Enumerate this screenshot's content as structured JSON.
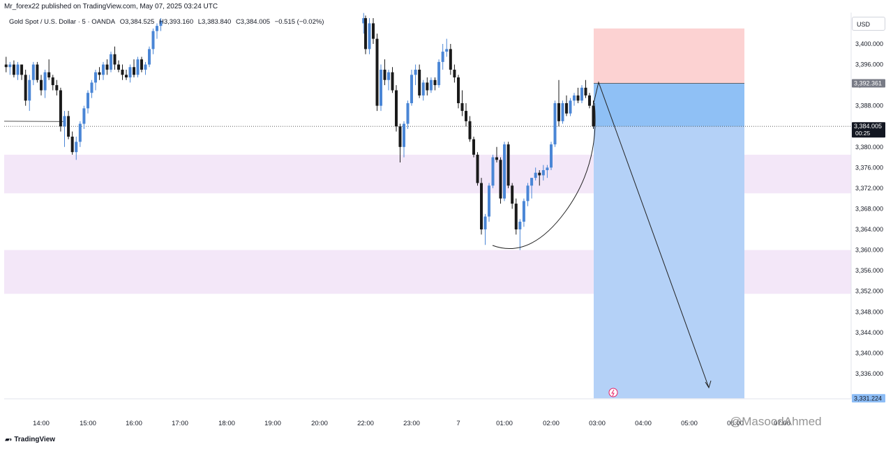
{
  "header": {
    "publish_text": "Mr_forex22 published on TradingView.com, May 07, 2025 03:24 UTC"
  },
  "symbol": {
    "name": "Gold Spot / U.S. Dollar · 5 · OANDA",
    "open": "O3,384.525",
    "high": "H3,393.160",
    "low": "L3,383.840",
    "close": "C3,384.005",
    "change": "−0.515 (−0.02%)"
  },
  "currency": "USD",
  "branding": {
    "logo_text": "TradingView",
    "watermark": "@MasoodAhmed"
  },
  "colors": {
    "bull": "#4a86d6",
    "bear": "#1a1a1a",
    "zone": "#f3e7f8",
    "stop_zone": "#fcd2d2",
    "target_zone": "#b4d1f7",
    "entry_zone": "#8fc0f5"
  },
  "chart_data": {
    "type": "candlestick",
    "ylim": [
      3330,
      3404
    ],
    "y_ticks": [
      "3,400.000",
      "3,396.000",
      "3,392.000",
      "3,388.000",
      "3,384.000",
      "3,380.000",
      "3,376.000",
      "3,372.000",
      "3,368.000",
      "3,364.000",
      "3,360.000",
      "3,356.000",
      "3,352.000",
      "3,348.000",
      "3,344.000",
      "3,340.000",
      "3,336.000"
    ],
    "x_ticks": [
      "14:00",
      "15:00",
      "16:00",
      "17:00",
      "18:00",
      "19:00",
      "20:00",
      "22:00",
      "23:00",
      "7",
      "01:00",
      "02:00",
      "03:00",
      "04:00",
      "05:00",
      "06:00",
      "07:00"
    ],
    "last_price": {
      "value": "3,384.005",
      "countdown": "00:25"
    },
    "position": {
      "side": "short",
      "entry": "3,392.361",
      "target": "3,331.224",
      "stop_top": 3403.0
    },
    "demand_zones": [
      {
        "from": 3371,
        "to": 3378.5
      },
      {
        "from": 3351.5,
        "to": 3360
      }
    ],
    "reference_level": 3385,
    "session_1_start": "13:15",
    "session_2_start": "21:55",
    "candles_session_1": [
      [
        3396.0,
        3397.5,
        3394.5,
        3395.5
      ],
      [
        3395.5,
        3396.5,
        3394.0,
        3396.0
      ],
      [
        3396.0,
        3396.8,
        3393.5,
        3394.0
      ],
      [
        3394.0,
        3396.5,
        3393.0,
        3396.0
      ],
      [
        3396.0,
        3396.0,
        3393.0,
        3394.0
      ],
      [
        3394.0,
        3395.0,
        3388.0,
        3389.0
      ],
      [
        3389.0,
        3394.0,
        3387.0,
        3393.0
      ],
      [
        3393.0,
        3396.5,
        3392.0,
        3396.0
      ],
      [
        3396.0,
        3396.5,
        3392.5,
        3393.0
      ],
      [
        3393.0,
        3394.0,
        3390.0,
        3391.0
      ],
      [
        3391.0,
        3395.0,
        3389.5,
        3394.5
      ],
      [
        3394.5,
        3397.0,
        3393.0,
        3393.5
      ],
      [
        3393.5,
        3394.0,
        3391.0,
        3392.0
      ],
      [
        3392.0,
        3393.0,
        3390.0,
        3391.0
      ],
      [
        3391.0,
        3391.5,
        3383.0,
        3384.0
      ],
      [
        3384.0,
        3387.0,
        3380.0,
        3386.0
      ],
      [
        3386.0,
        3387.0,
        3381.5,
        3382.0
      ],
      [
        3382.0,
        3383.0,
        3378.5,
        3379.0
      ],
      [
        3379.0,
        3382.0,
        3377.5,
        3381.0
      ],
      [
        3381.0,
        3385.0,
        3380.0,
        3384.5
      ],
      [
        3384.5,
        3388.0,
        3383.5,
        3387.5
      ],
      [
        3387.5,
        3391.0,
        3386.5,
        3390.5
      ],
      [
        3390.5,
        3393.0,
        3389.5,
        3392.5
      ],
      [
        3392.5,
        3395.0,
        3391.0,
        3394.5
      ],
      [
        3394.5,
        3395.5,
        3393.0,
        3394.0
      ],
      [
        3394.0,
        3396.5,
        3393.0,
        3396.0
      ],
      [
        3396.0,
        3397.0,
        3394.0,
        3395.0
      ],
      [
        3395.0,
        3398.5,
        3394.5,
        3398.0
      ],
      [
        3398.0,
        3399.5,
        3395.0,
        3396.0
      ],
      [
        3396.0,
        3396.8,
        3394.5,
        3395.0
      ],
      [
        3395.0,
        3396.0,
        3393.0,
        3394.0
      ],
      [
        3394.0,
        3395.0,
        3393.0,
        3393.5
      ],
      [
        3393.5,
        3396.0,
        3392.5,
        3395.5
      ],
      [
        3395.5,
        3397.0,
        3393.5,
        3394.0
      ],
      [
        3394.0,
        3397.5,
        3393.5,
        3397.0
      ],
      [
        3397.0,
        3397.5,
        3394.5,
        3395.0
      ],
      [
        3395.0,
        3396.5,
        3394.0,
        3396.0
      ],
      [
        3396.0,
        3399.5,
        3395.5,
        3399.0
      ],
      [
        3399.0,
        3403.0,
        3398.0,
        3402.5
      ],
      [
        3402.5,
        3404.0,
        3401.0,
        3403.5
      ],
      [
        3403.5,
        3405.0,
        3402.5,
        3404.5
      ]
    ],
    "candles_session_2": [
      [
        3404.0,
        3406.0,
        3402.0,
        3405.0
      ],
      [
        3405.0,
        3405.5,
        3398.0,
        3399.0
      ],
      [
        3399.0,
        3405.0,
        3398.0,
        3404.0
      ],
      [
        3404.0,
        3405.0,
        3400.0,
        3401.0
      ],
      [
        3401.0,
        3402.0,
        3387.0,
        3388.0
      ],
      [
        3388.0,
        3396.0,
        3387.0,
        3395.0
      ],
      [
        3395.0,
        3397.0,
        3392.0,
        3393.0
      ],
      [
        3393.0,
        3395.0,
        3391.0,
        3394.5
      ],
      [
        3394.5,
        3395.5,
        3390.5,
        3391.0
      ],
      [
        3391.0,
        3392.0,
        3383.0,
        3384.0
      ],
      [
        3384.0,
        3384.5,
        3377.0,
        3380.0
      ],
      [
        3380.0,
        3385.0,
        3378.0,
        3384.5
      ],
      [
        3384.5,
        3389.0,
        3383.5,
        3388.5
      ],
      [
        3388.5,
        3395.0,
        3388.0,
        3394.0
      ],
      [
        3394.0,
        3396.0,
        3392.0,
        3395.0
      ],
      [
        3395.0,
        3396.0,
        3389.5,
        3390.0
      ],
      [
        3390.0,
        3393.0,
        3389.0,
        3392.5
      ],
      [
        3392.5,
        3393.5,
        3390.0,
        3391.0
      ],
      [
        3391.0,
        3393.5,
        3390.5,
        3393.0
      ],
      [
        3393.0,
        3393.5,
        3391.0,
        3392.0
      ],
      [
        3392.0,
        3397.0,
        3391.5,
        3396.5
      ],
      [
        3396.5,
        3400.0,
        3395.0,
        3398.5
      ],
      [
        3398.5,
        3401.0,
        3397.5,
        3399.0
      ],
      [
        3399.0,
        3400.0,
        3394.0,
        3395.0
      ],
      [
        3395.0,
        3396.0,
        3392.5,
        3393.5
      ],
      [
        3393.5,
        3394.0,
        3387.5,
        3388.5
      ],
      [
        3388.5,
        3391.0,
        3386.0,
        3387.0
      ],
      [
        3387.0,
        3388.5,
        3384.0,
        3385.0
      ],
      [
        3385.0,
        3386.0,
        3381.0,
        3381.5
      ],
      [
        3381.5,
        3382.0,
        3378.0,
        3378.5
      ],
      [
        3378.5,
        3379.0,
        3372.5,
        3373.0
      ],
      [
        3373.0,
        3374.0,
        3363.0,
        3364.0
      ],
      [
        3364.0,
        3367.0,
        3361.0,
        3366.5
      ],
      [
        3366.5,
        3373.0,
        3365.5,
        3372.5
      ],
      [
        3372.5,
        3378.5,
        3372.0,
        3378.0
      ],
      [
        3378.0,
        3380.0,
        3377.0,
        3377.5
      ],
      [
        3377.5,
        3378.0,
        3369.0,
        3370.0
      ],
      [
        3370.0,
        3381.0,
        3369.5,
        3380.5
      ],
      [
        3380.5,
        3381.0,
        3372.0,
        3372.5
      ],
      [
        3372.5,
        3373.0,
        3368.0,
        3369.0
      ],
      [
        3369.0,
        3370.0,
        3363.0,
        3364.0
      ],
      [
        3364.0,
        3366.0,
        3360.0,
        3365.5
      ],
      [
        3365.5,
        3370.0,
        3364.5,
        3369.5
      ],
      [
        3369.5,
        3373.0,
        3368.5,
        3372.5
      ],
      [
        3372.5,
        3374.0,
        3370.0,
        3374.0
      ],
      [
        3374.0,
        3376.0,
        3373.5,
        3375.0
      ],
      [
        3375.0,
        3375.5,
        3372.5,
        3374.5
      ],
      [
        3374.5,
        3376.5,
        3373.5,
        3375.5
      ],
      [
        3375.5,
        3376.5,
        3374.0,
        3376.0
      ],
      [
        3376.0,
        3381.0,
        3375.5,
        3380.5
      ],
      [
        3380.5,
        3389.0,
        3380.0,
        3388.5
      ],
      [
        3388.5,
        3393.0,
        3384.0,
        3385.0
      ],
      [
        3385.0,
        3389.0,
        3384.5,
        3388.5
      ],
      [
        3388.5,
        3390.0,
        3386.0,
        3386.5
      ],
      [
        3386.5,
        3389.5,
        3386.0,
        3389.0
      ],
      [
        3389.0,
        3390.5,
        3388.0,
        3390.0
      ],
      [
        3390.0,
        3391.5,
        3388.5,
        3389.0
      ],
      [
        3389.0,
        3392.0,
        3388.5,
        3391.5
      ],
      [
        3391.5,
        3393.0,
        3389.5,
        3390.0
      ],
      [
        3390.0,
        3390.5,
        3387.5,
        3388.0
      ],
      [
        3388.0,
        3389.0,
        3383.5,
        3384.0
      ]
    ]
  }
}
